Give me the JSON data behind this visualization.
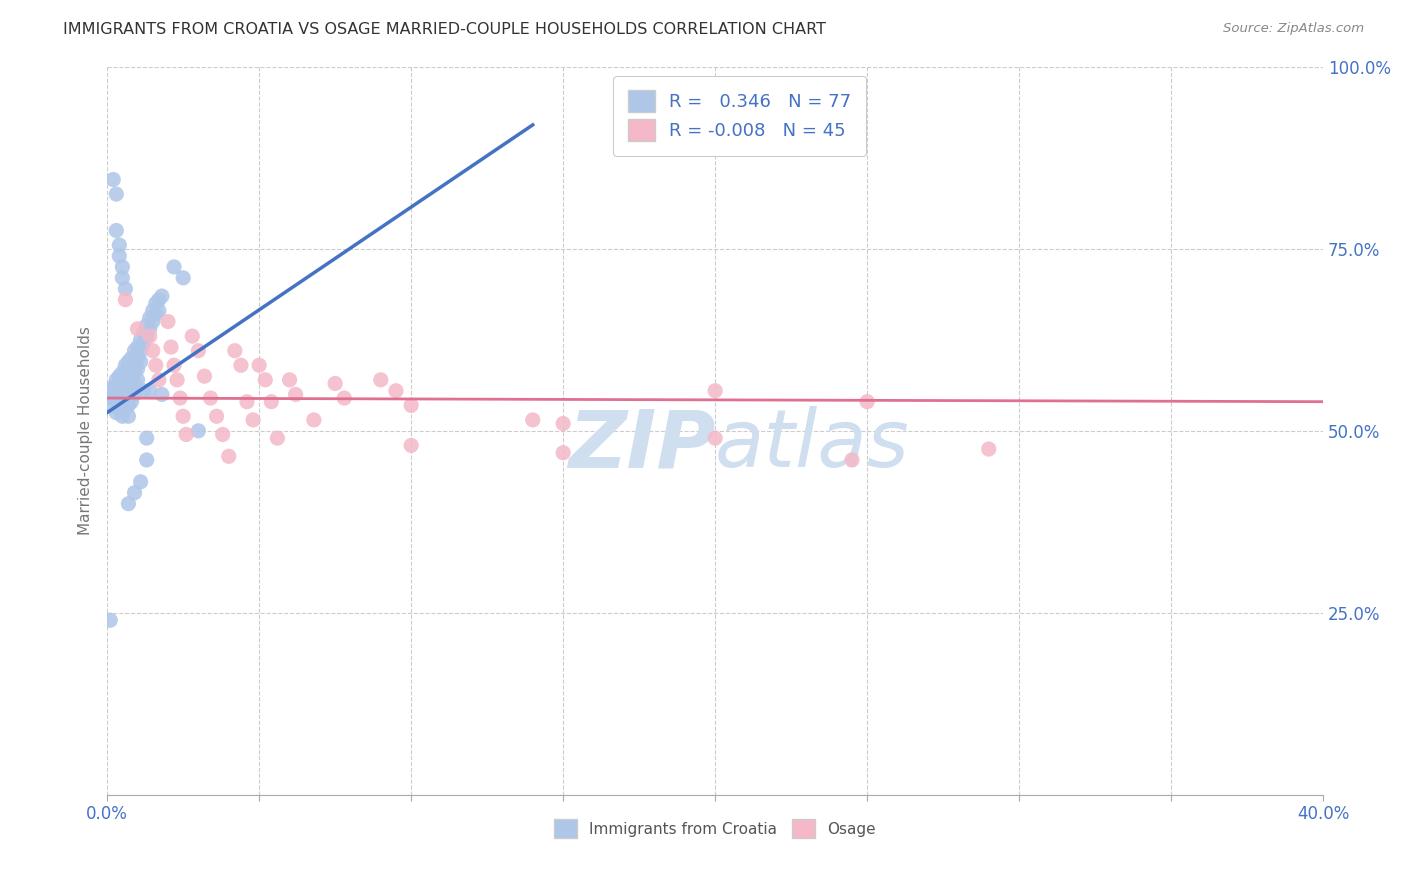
{
  "title": "IMMIGRANTS FROM CROATIA VS OSAGE MARRIED-COUPLE HOUSEHOLDS CORRELATION CHART",
  "source": "Source: ZipAtlas.com",
  "ylabel": "Married-couple Households",
  "xlim": [
    0.0,
    0.4
  ],
  "ylim": [
    0.0,
    1.0
  ],
  "x_ticks": [
    0.0,
    0.05,
    0.1,
    0.15,
    0.2,
    0.25,
    0.3,
    0.35,
    0.4
  ],
  "y_ticks_right": [
    0.0,
    0.25,
    0.5,
    0.75,
    1.0
  ],
  "croatia_R": 0.346,
  "croatia_N": 77,
  "osage_R": -0.008,
  "osage_N": 45,
  "blue_scatter_color": "#aec6e8",
  "blue_line_color": "#4472c4",
  "pink_scatter_color": "#f4b8c8",
  "pink_line_color": "#e07090",
  "watermark_color": "#d0dff0",
  "grid_color": "#cccccc",
  "title_color": "#404040",
  "right_axis_color": "#4472c4",
  "legend_text_color": "#4472c4",
  "tick_color": "#999999",
  "croatia_points": [
    [
      0.001,
      0.555
    ],
    [
      0.002,
      0.56
    ],
    [
      0.002,
      0.545
    ],
    [
      0.002,
      0.535
    ],
    [
      0.003,
      0.57
    ],
    [
      0.003,
      0.555
    ],
    [
      0.003,
      0.54
    ],
    [
      0.003,
      0.525
    ],
    [
      0.004,
      0.575
    ],
    [
      0.004,
      0.56
    ],
    [
      0.004,
      0.545
    ],
    [
      0.004,
      0.53
    ],
    [
      0.005,
      0.58
    ],
    [
      0.005,
      0.565
    ],
    [
      0.005,
      0.55
    ],
    [
      0.005,
      0.535
    ],
    [
      0.005,
      0.52
    ],
    [
      0.006,
      0.59
    ],
    [
      0.006,
      0.575
    ],
    [
      0.006,
      0.56
    ],
    [
      0.006,
      0.545
    ],
    [
      0.006,
      0.53
    ],
    [
      0.007,
      0.595
    ],
    [
      0.007,
      0.58
    ],
    [
      0.007,
      0.565
    ],
    [
      0.007,
      0.55
    ],
    [
      0.007,
      0.535
    ],
    [
      0.007,
      0.52
    ],
    [
      0.008,
      0.6
    ],
    [
      0.008,
      0.585
    ],
    [
      0.008,
      0.57
    ],
    [
      0.008,
      0.555
    ],
    [
      0.008,
      0.54
    ],
    [
      0.009,
      0.61
    ],
    [
      0.009,
      0.595
    ],
    [
      0.009,
      0.58
    ],
    [
      0.009,
      0.565
    ],
    [
      0.009,
      0.55
    ],
    [
      0.01,
      0.615
    ],
    [
      0.01,
      0.6
    ],
    [
      0.01,
      0.585
    ],
    [
      0.01,
      0.57
    ],
    [
      0.011,
      0.625
    ],
    [
      0.011,
      0.61
    ],
    [
      0.011,
      0.595
    ],
    [
      0.012,
      0.635
    ],
    [
      0.012,
      0.62
    ],
    [
      0.012,
      0.555
    ],
    [
      0.013,
      0.645
    ],
    [
      0.013,
      0.63
    ],
    [
      0.013,
      0.49
    ],
    [
      0.014,
      0.655
    ],
    [
      0.014,
      0.64
    ],
    [
      0.014,
      0.555
    ],
    [
      0.015,
      0.665
    ],
    [
      0.015,
      0.65
    ],
    [
      0.016,
      0.675
    ],
    [
      0.016,
      0.66
    ],
    [
      0.017,
      0.68
    ],
    [
      0.017,
      0.665
    ],
    [
      0.018,
      0.685
    ],
    [
      0.003,
      0.825
    ],
    [
      0.002,
      0.845
    ],
    [
      0.003,
      0.775
    ],
    [
      0.004,
      0.755
    ],
    [
      0.004,
      0.74
    ],
    [
      0.005,
      0.725
    ],
    [
      0.005,
      0.71
    ],
    [
      0.006,
      0.695
    ],
    [
      0.001,
      0.24
    ],
    [
      0.007,
      0.4
    ],
    [
      0.009,
      0.415
    ],
    [
      0.011,
      0.43
    ],
    [
      0.013,
      0.46
    ],
    [
      0.018,
      0.55
    ],
    [
      0.022,
      0.725
    ],
    [
      0.025,
      0.71
    ],
    [
      0.03,
      0.5
    ]
  ],
  "osage_points": [
    [
      0.006,
      0.68
    ],
    [
      0.01,
      0.64
    ],
    [
      0.014,
      0.63
    ],
    [
      0.015,
      0.61
    ],
    [
      0.016,
      0.59
    ],
    [
      0.017,
      0.57
    ],
    [
      0.02,
      0.65
    ],
    [
      0.021,
      0.615
    ],
    [
      0.022,
      0.59
    ],
    [
      0.023,
      0.57
    ],
    [
      0.024,
      0.545
    ],
    [
      0.025,
      0.52
    ],
    [
      0.026,
      0.495
    ],
    [
      0.028,
      0.63
    ],
    [
      0.03,
      0.61
    ],
    [
      0.032,
      0.575
    ],
    [
      0.034,
      0.545
    ],
    [
      0.036,
      0.52
    ],
    [
      0.038,
      0.495
    ],
    [
      0.04,
      0.465
    ],
    [
      0.042,
      0.61
    ],
    [
      0.044,
      0.59
    ],
    [
      0.046,
      0.54
    ],
    [
      0.048,
      0.515
    ],
    [
      0.05,
      0.59
    ],
    [
      0.052,
      0.57
    ],
    [
      0.054,
      0.54
    ],
    [
      0.056,
      0.49
    ],
    [
      0.06,
      0.57
    ],
    [
      0.062,
      0.55
    ],
    [
      0.068,
      0.515
    ],
    [
      0.075,
      0.565
    ],
    [
      0.078,
      0.545
    ],
    [
      0.09,
      0.57
    ],
    [
      0.095,
      0.555
    ],
    [
      0.1,
      0.535
    ],
    [
      0.14,
      0.515
    ],
    [
      0.15,
      0.51
    ],
    [
      0.2,
      0.49
    ],
    [
      0.245,
      0.46
    ],
    [
      0.2,
      0.555
    ],
    [
      0.15,
      0.47
    ],
    [
      0.1,
      0.48
    ],
    [
      0.25,
      0.54
    ],
    [
      0.29,
      0.475
    ]
  ],
  "croatia_line_x": [
    0.0,
    0.14
  ],
  "croatia_line_y": [
    0.525,
    0.92
  ],
  "osage_line_x": [
    0.0,
    0.4
  ],
  "osage_line_y": [
    0.545,
    0.54
  ]
}
